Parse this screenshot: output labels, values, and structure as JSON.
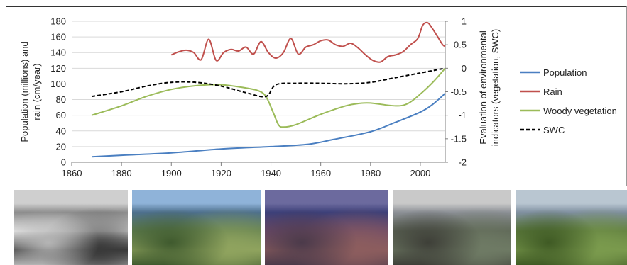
{
  "chart_data": {
    "type": "line",
    "title": "",
    "xlabel": "",
    "ylabel": "Population (millions) and rain (cm/year)",
    "y2label": "Evaluation of environmental indicators (vegetation, SWC)",
    "xlim": [
      1860,
      2010
    ],
    "ylim": [
      0,
      180
    ],
    "y2lim": [
      -2,
      1
    ],
    "x_ticks": [
      "1860",
      "1880",
      "1900",
      "1920",
      "1940",
      "1960",
      "1980",
      "2000"
    ],
    "y_ticks": [
      "0",
      "20",
      "40",
      "60",
      "80",
      "100",
      "120",
      "140",
      "160",
      "180"
    ],
    "y2_ticks": [
      "-2",
      "-1.5",
      "-1",
      "-0.5",
      "0",
      "0.5",
      "1"
    ],
    "grid": "horizontal",
    "legend_position": "right",
    "series": [
      {
        "name": "Population",
        "axis": "left",
        "color": "#4a7fc1",
        "x": [
          1868,
          1880,
          1900,
          1920,
          1940,
          1955,
          1965,
          1980,
          1990,
          2000,
          2005,
          2010
        ],
        "y": [
          7,
          9,
          12,
          17,
          20,
          23,
          29,
          39,
          51,
          64,
          74,
          88
        ]
      },
      {
        "name": "Rain",
        "axis": "left",
        "color": "#c0504d",
        "x": [
          1900,
          1903,
          1906,
          1909,
          1912,
          1915,
          1918,
          1921,
          1924,
          1927,
          1930,
          1933,
          1936,
          1939,
          1942,
          1945,
          1948,
          1951,
          1954,
          1957,
          1960,
          1963,
          1966,
          1969,
          1972,
          1975,
          1978,
          1981,
          1984,
          1987,
          1990,
          1993,
          1996,
          1999,
          2001,
          2003,
          2005,
          2007,
          2009,
          2010
        ],
        "y": [
          137,
          141,
          143,
          140,
          131,
          157,
          130,
          140,
          144,
          142,
          147,
          138,
          154,
          140,
          133,
          140,
          158,
          138,
          147,
          150,
          155,
          156,
          150,
          148,
          152,
          146,
          137,
          130,
          128,
          135,
          137,
          141,
          150,
          158,
          175,
          178,
          170,
          160,
          150,
          148
        ]
      },
      {
        "name": "Woody vegetation",
        "axis": "right",
        "color": "#9bbb59",
        "x": [
          1868,
          1880,
          1890,
          1900,
          1910,
          1920,
          1930,
          1935,
          1938,
          1941,
          1943,
          1945,
          1950,
          1960,
          1970,
          1975,
          1980,
          1990,
          1995,
          2000,
          2005,
          2010
        ],
        "y": [
          -1,
          -0.8,
          -0.6,
          -0.45,
          -0.37,
          -0.35,
          -0.42,
          -0.48,
          -0.6,
          -0.95,
          -1.2,
          -1.25,
          -1.2,
          -0.98,
          -0.8,
          -0.75,
          -0.74,
          -0.8,
          -0.75,
          -0.55,
          -0.3,
          0
        ]
      },
      {
        "name": "SWC",
        "axis": "right",
        "color": "#000000",
        "x": [
          1868,
          1880,
          1890,
          1900,
          1910,
          1920,
          1930,
          1938,
          1942,
          1950,
          1960,
          1970,
          1980,
          1990,
          2000,
          2010
        ],
        "y": [
          -0.6,
          -0.5,
          -0.38,
          -0.3,
          -0.3,
          -0.38,
          -0.52,
          -0.6,
          -0.35,
          -0.32,
          -0.32,
          -0.33,
          -0.3,
          -0.2,
          -0.1,
          0
        ]
      }
    ]
  },
  "photos": [
    {
      "name": "photo-1868-black-white",
      "colors": [
        "#cfcfcf",
        "#8c8c8c",
        "#e8e8e8",
        "#3a3a3a",
        "#b5b5b5"
      ]
    },
    {
      "name": "photo-lake-green-slopes",
      "colors": [
        "#8fb3d9",
        "#4d6f8c",
        "#5f7d4f",
        "#8fa35e",
        "#3f5a2e"
      ]
    },
    {
      "name": "photo-lake-purple-terraces",
      "colors": [
        "#6c6a9e",
        "#3c3f78",
        "#6b4a6a",
        "#8c5d5e",
        "#4b3a4a"
      ]
    },
    {
      "name": "photo-lake-cloudy-donkey",
      "colors": [
        "#c9c9c9",
        "#8b8f95",
        "#5b6354",
        "#6e7a64",
        "#3e3f38"
      ]
    },
    {
      "name": "photo-lake-green-fields",
      "colors": [
        "#b9c6d1",
        "#7f8f9f",
        "#5c7a3d",
        "#7a9a4d",
        "#3f5a24"
      ]
    }
  ]
}
